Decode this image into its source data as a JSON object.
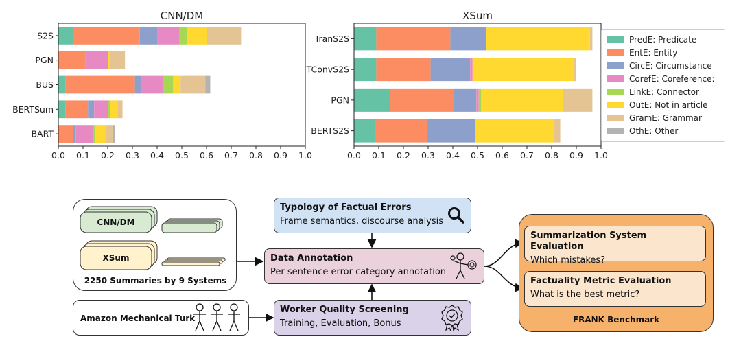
{
  "chart_data": [
    {
      "type": "bar",
      "orientation": "horizontal",
      "stacked": true,
      "title": "CNN/DM",
      "categories": [
        "S2S",
        "PGN",
        "BUS",
        "BERTSum",
        "BART"
      ],
      "xlim": [
        0,
        1.0
      ],
      "xticks": [
        "0.0",
        "0.1",
        "0.2",
        "0.3",
        "0.4",
        "0.5",
        "0.6",
        "0.7",
        "0.8",
        "0.9",
        "1.0"
      ],
      "series": [
        {
          "name": "PredE: Predicate",
          "values": [
            0.06,
            0.0,
            0.03,
            0.03,
            0.0
          ]
        },
        {
          "name": "EntE: Entity",
          "values": [
            0.27,
            0.11,
            0.28,
            0.09,
            0.06
          ]
        },
        {
          "name": "CircE: Circumstance",
          "values": [
            0.07,
            0.0,
            0.025,
            0.025,
            0.01
          ]
        },
        {
          "name": "CorefE: Coreference:",
          "values": [
            0.09,
            0.09,
            0.09,
            0.055,
            0.07
          ]
        },
        {
          "name": "LinkE: Connector",
          "values": [
            0.03,
            0.0,
            0.04,
            0.01,
            0.01
          ]
        },
        {
          "name": "OutE: Not in article",
          "values": [
            0.08,
            0.01,
            0.03,
            0.03,
            0.04
          ]
        },
        {
          "name": "GramE: Grammar",
          "values": [
            0.14,
            0.06,
            0.1,
            0.02,
            0.03
          ]
        },
        {
          "name": "OthE: Other",
          "values": [
            0.0,
            0.0,
            0.02,
            0.0,
            0.01
          ]
        }
      ]
    },
    {
      "type": "bar",
      "orientation": "horizontal",
      "stacked": true,
      "title": "XSum",
      "categories": [
        "TranS2S",
        "TConvS2S",
        "PGN",
        "BERTS2S"
      ],
      "xlim": [
        0,
        1.0
      ],
      "xticks": [
        "0.0",
        "0.1",
        "0.2",
        "0.3",
        "0.4",
        "0.5",
        "0.6",
        "0.7",
        "0.8",
        "0.9",
        "1.0"
      ],
      "series": [
        {
          "name": "PredE: Predicate",
          "values": [
            0.09,
            0.09,
            0.145,
            0.085
          ]
        },
        {
          "name": "EntE: Entity",
          "values": [
            0.3,
            0.22,
            0.26,
            0.21
          ]
        },
        {
          "name": "CircE: Circumstance",
          "values": [
            0.145,
            0.16,
            0.09,
            0.195
          ]
        },
        {
          "name": "CorefE: Coreference:",
          "values": [
            0.0,
            0.01,
            0.01,
            0.0
          ]
        },
        {
          "name": "LinkE: Connector",
          "values": [
            0.0,
            0.0,
            0.01,
            0.0
          ]
        },
        {
          "name": "OutE: Not in article",
          "values": [
            0.42,
            0.41,
            0.33,
            0.32
          ]
        },
        {
          "name": "GramE: Grammar",
          "values": [
            0.01,
            0.01,
            0.12,
            0.025
          ]
        },
        {
          "name": "OthE: Other",
          "values": [
            0.0,
            0.0,
            0.0,
            0.0
          ]
        }
      ]
    }
  ],
  "legend": {
    "placement": "right",
    "items": [
      {
        "label": "PredE: Predicate",
        "color": "#66c2a5"
      },
      {
        "label": "EntE: Entity",
        "color": "#fc8d62"
      },
      {
        "label": "CircE: Circumstance",
        "color": "#8da0cb"
      },
      {
        "label": "CorefE: Coreference:",
        "color": "#e78ac3"
      },
      {
        "label": "LinkE: Connector",
        "color": "#a6d854"
      },
      {
        "label": "OutE: Not in article",
        "color": "#ffd92f"
      },
      {
        "label": "GramE: Grammar",
        "color": "#e5c494"
      },
      {
        "label": "OthE: Other",
        "color": "#b3b3b3"
      }
    ]
  },
  "diagram": {
    "sources": {
      "cnn_label": "CNN/DM",
      "xsum_label": "XSum",
      "caption": "2250 Summaries by 9 Systems",
      "cnn_color": "#d9ead3",
      "xsum_color": "#fff2cc"
    },
    "typology": {
      "title": "Typology of Factual Errors",
      "subtitle": "Frame semantics, discourse analysis",
      "color": "#d0e2f3",
      "icon": "magnifier-icon"
    },
    "annotation": {
      "title": "Data Annotation",
      "subtitle": "Per sentence error category annotation",
      "color": "#ead1dc",
      "icon": "annotator-icon"
    },
    "screening": {
      "title": "Worker Quality Screening",
      "subtitle": "Training, Evaluation, Bonus",
      "color": "#d9d2e9",
      "icon": "badge-icon"
    },
    "turk": {
      "label": "Amazon Mechanical Turk",
      "icon": "workers-icon"
    },
    "frank": {
      "label": "FRANK Benchmark",
      "color": "#f6b26b",
      "inner_color": "#fce5cd",
      "system_eval": {
        "title": "Summarization System Evaluation",
        "subtitle": "Which mistakes?"
      },
      "metric_eval": {
        "title": "Factuality Metric Evaluation",
        "subtitle": "What is the best metric?"
      }
    }
  }
}
